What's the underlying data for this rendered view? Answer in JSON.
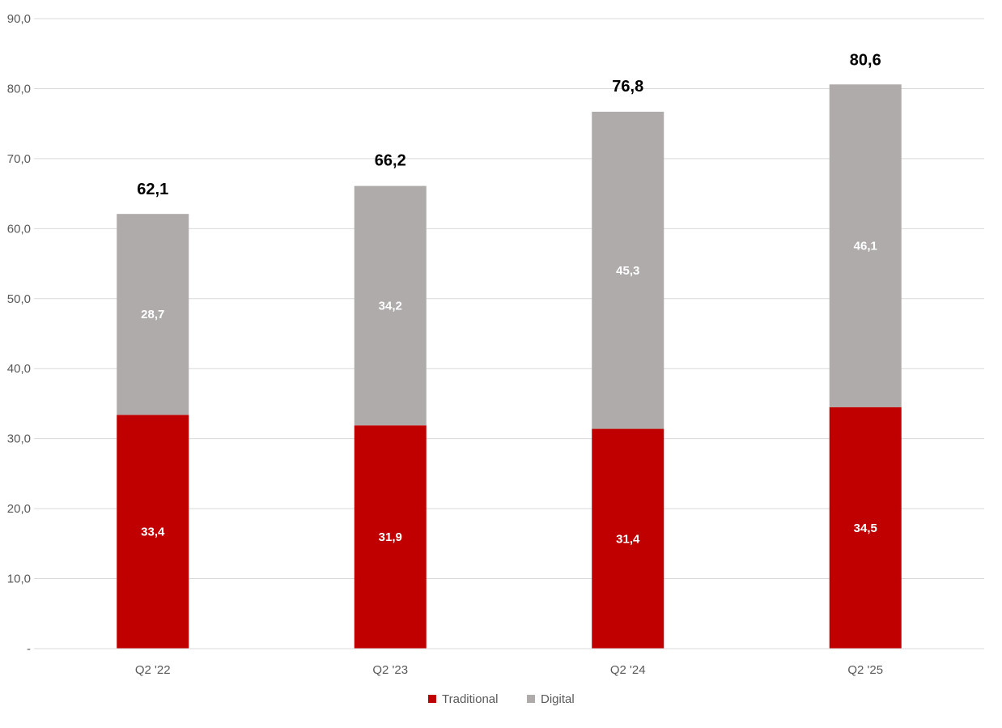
{
  "chart_data": {
    "type": "bar",
    "stacked": true,
    "categories": [
      "Q2 '22",
      "Q2 '23",
      "Q2 '24",
      "Q2 '25"
    ],
    "series": [
      {
        "name": "Traditional",
        "values": [
          33.4,
          31.9,
          31.4,
          34.5
        ],
        "labels": [
          "33,4",
          "31,9",
          "31,4",
          "34,5"
        ],
        "color": "#c00000"
      },
      {
        "name": "Digital",
        "values": [
          28.7,
          34.2,
          45.3,
          46.1
        ],
        "labels": [
          "28,7",
          "34,2",
          "45,3",
          "46,1"
        ],
        "color": "#afabab"
      }
    ],
    "totals": [
      62.1,
      66.2,
      76.8,
      80.6
    ],
    "total_labels": [
      "62,1",
      "66,2",
      "76,8",
      "80,6"
    ],
    "ylim": [
      0,
      90
    ],
    "yticks": [
      0,
      10,
      20,
      30,
      40,
      50,
      60,
      70,
      80,
      90
    ],
    "ytick_labels": [
      "-",
      "10,0",
      "20,0",
      "30,0",
      "40,0",
      "50,0",
      "60,0",
      "70,0",
      "80,0",
      "90,0"
    ],
    "grid": true,
    "legend_position": "bottom-center",
    "title": "",
    "xlabel": "",
    "ylabel": ""
  }
}
